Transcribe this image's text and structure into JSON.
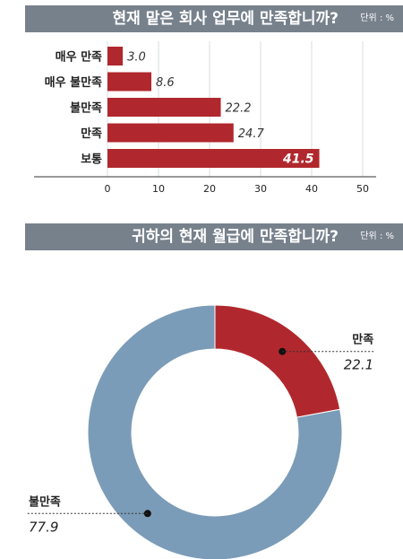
{
  "colors": {
    "header_bg": "#77818c",
    "accent_red": "#b0282d",
    "steel_blue": "#7b9cb8",
    "text": "#222222"
  },
  "section1": {
    "title": "현재 맡은 회사 업무에 만족합니까?",
    "unit": "단위 : %"
  },
  "section2": {
    "title": "귀하의 현재 월급에 만족합니까?",
    "unit": "단위 : %"
  },
  "chart_data": [
    {
      "type": "bar",
      "orientation": "horizontal",
      "title": "현재 맡은 회사 업무에 만족합니까?",
      "categories": [
        "매우 만족",
        "매우 불만족",
        "불만족",
        "만족",
        "보통"
      ],
      "values": [
        3.0,
        8.6,
        22.2,
        24.7,
        41.5
      ],
      "value_labels": [
        "3.0",
        "8.6",
        "22.2",
        "24.7",
        "41.5"
      ],
      "xlim": [
        0,
        50
      ],
      "xticks": [
        0,
        10,
        20,
        30,
        40,
        50
      ],
      "grid": true,
      "color": "#b0282d"
    },
    {
      "type": "pie",
      "donut": true,
      "title": "귀하의 현재 월급에 만족합니까?",
      "slices": [
        {
          "label": "만족",
          "value": 22.1,
          "value_label": "22.1",
          "color": "#b0282d"
        },
        {
          "label": "불만족",
          "value": 77.9,
          "value_label": "77.9",
          "color": "#7b9cb8"
        }
      ]
    }
  ]
}
